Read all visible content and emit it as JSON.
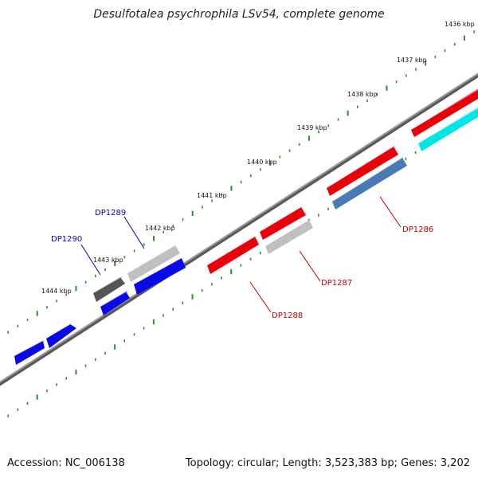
{
  "header": {
    "title": "Desulfotalea psychrophila LSv54, complete genome"
  },
  "footer": {
    "accession": "Accession: NC_006138",
    "summary": "Topology: circular; Length: 3,523,383 bp; Genes: 3,202"
  },
  "colors": {
    "backbone": "#7a7a7a",
    "tick": "#2e8b2e",
    "blue": "#0a0ae6",
    "red": "#e8000a",
    "gray_light": "#c0c0c0",
    "gray_dark": "#555555",
    "steel": "#4a7ab5",
    "cyan": "#00e5e5",
    "label_blue": "#0000cc",
    "label_red": "#cc0000"
  },
  "ruler": {
    "ticks": [
      {
        "label": "1436 kbp"
      },
      {
        "label": "1437 kbp"
      },
      {
        "label": "1438 kbp"
      },
      {
        "label": "1439 kbp"
      },
      {
        "label": "1440 kbp"
      },
      {
        "label": "1441 kbp"
      },
      {
        "label": "1442 kbp"
      },
      {
        "label": "1443 kbp"
      },
      {
        "label": "1444 kbp"
      }
    ]
  },
  "genes": [
    {
      "name": "DP1290",
      "color": "gray_dark",
      "label_color": "label_blue"
    },
    {
      "name": "DP1289",
      "color": "gray_light",
      "label_color": "label_blue"
    },
    {
      "name": "DP1288",
      "color": "red",
      "label_color": "label_red"
    },
    {
      "name": "DP1287",
      "color": "gray_light",
      "label_color": "label_red"
    },
    {
      "name": "DP1286",
      "color": "steel",
      "label_color": "label_red"
    }
  ]
}
